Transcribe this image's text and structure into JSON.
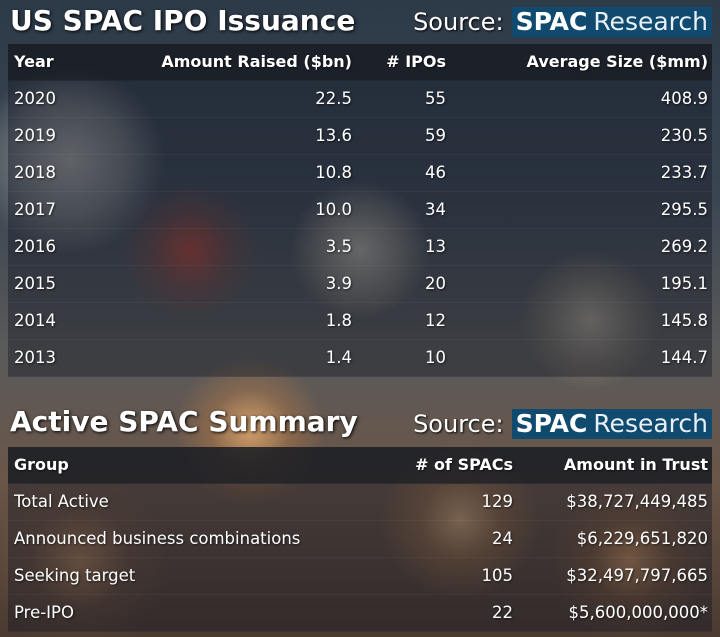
{
  "ipo_issuance": {
    "title": "US SPAC IPO Issuance",
    "source_label": "Source:",
    "source_logo": [
      "SPAC",
      "Research"
    ],
    "columns": [
      "Year",
      "Amount Raised ($bn)",
      "# IPOs",
      "Average Size ($mm)"
    ],
    "rows": [
      [
        "2020",
        "22.5",
        "55",
        "408.9"
      ],
      [
        "2019",
        "13.6",
        "59",
        "230.5"
      ],
      [
        "2018",
        "10.8",
        "46",
        "233.7"
      ],
      [
        "2017",
        "10.0",
        "34",
        "295.5"
      ],
      [
        "2016",
        "3.5",
        "13",
        "269.2"
      ],
      [
        "2015",
        "3.9",
        "20",
        "195.1"
      ],
      [
        "2014",
        "1.8",
        "12",
        "145.8"
      ],
      [
        "2013",
        "1.4",
        "10",
        "144.7"
      ]
    ]
  },
  "active_summary": {
    "title": "Active SPAC Summary",
    "source_label": "Source:",
    "source_logo": [
      "SPAC",
      "Research"
    ],
    "columns": [
      "Group",
      "# of SPACs",
      "Amount in Trust"
    ],
    "rows": [
      [
        "Total Active",
        "129",
        "$38,727,449,485"
      ],
      [
        "Announced business combinations",
        "24",
        "$6,229,651,820"
      ],
      [
        "Seeking target",
        "105",
        "$32,497,797,665"
      ],
      [
        "Pre-IPO",
        "22",
        "$5,600,000,000*"
      ]
    ]
  }
}
